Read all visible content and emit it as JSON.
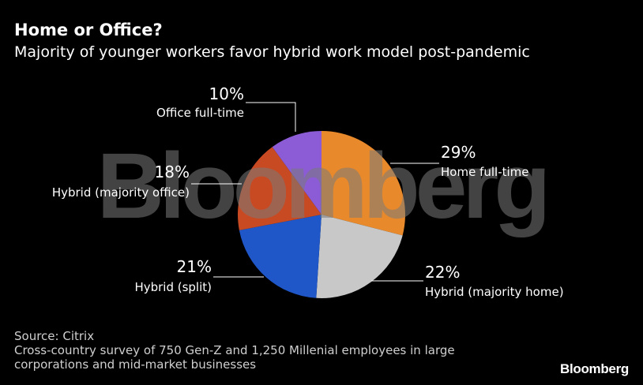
{
  "title": "Home or Office?",
  "subtitle": "Majority of younger workers favor hybrid work model post-pandemic",
  "chart_data": {
    "type": "pie",
    "title": "Home or Office?",
    "subtitle": "Majority of younger workers favor hybrid work model post-pandemic",
    "categories": [
      "Home full-time",
      "Hybrid (majority home)",
      "Hybrid (split)",
      "Hybrid (majority office)",
      "Office full-time"
    ],
    "values": [
      29,
      22,
      21,
      18,
      10
    ],
    "value_labels": [
      "29%",
      "22%",
      "21%",
      "18%",
      "10%"
    ],
    "colors": [
      "#E8892B",
      "#C8C8C8",
      "#1F57C9",
      "#C84A23",
      "#8B5CD6"
    ],
    "legend": "none"
  },
  "watermark": "Bloomberg",
  "source": {
    "line1": "Source: Citrix",
    "line2": "Cross-country survey of 750 Gen-Z and 1,250 Millenial employees in large",
    "line3": "corporations and mid-market businesses"
  },
  "logo": "Bloomberg"
}
